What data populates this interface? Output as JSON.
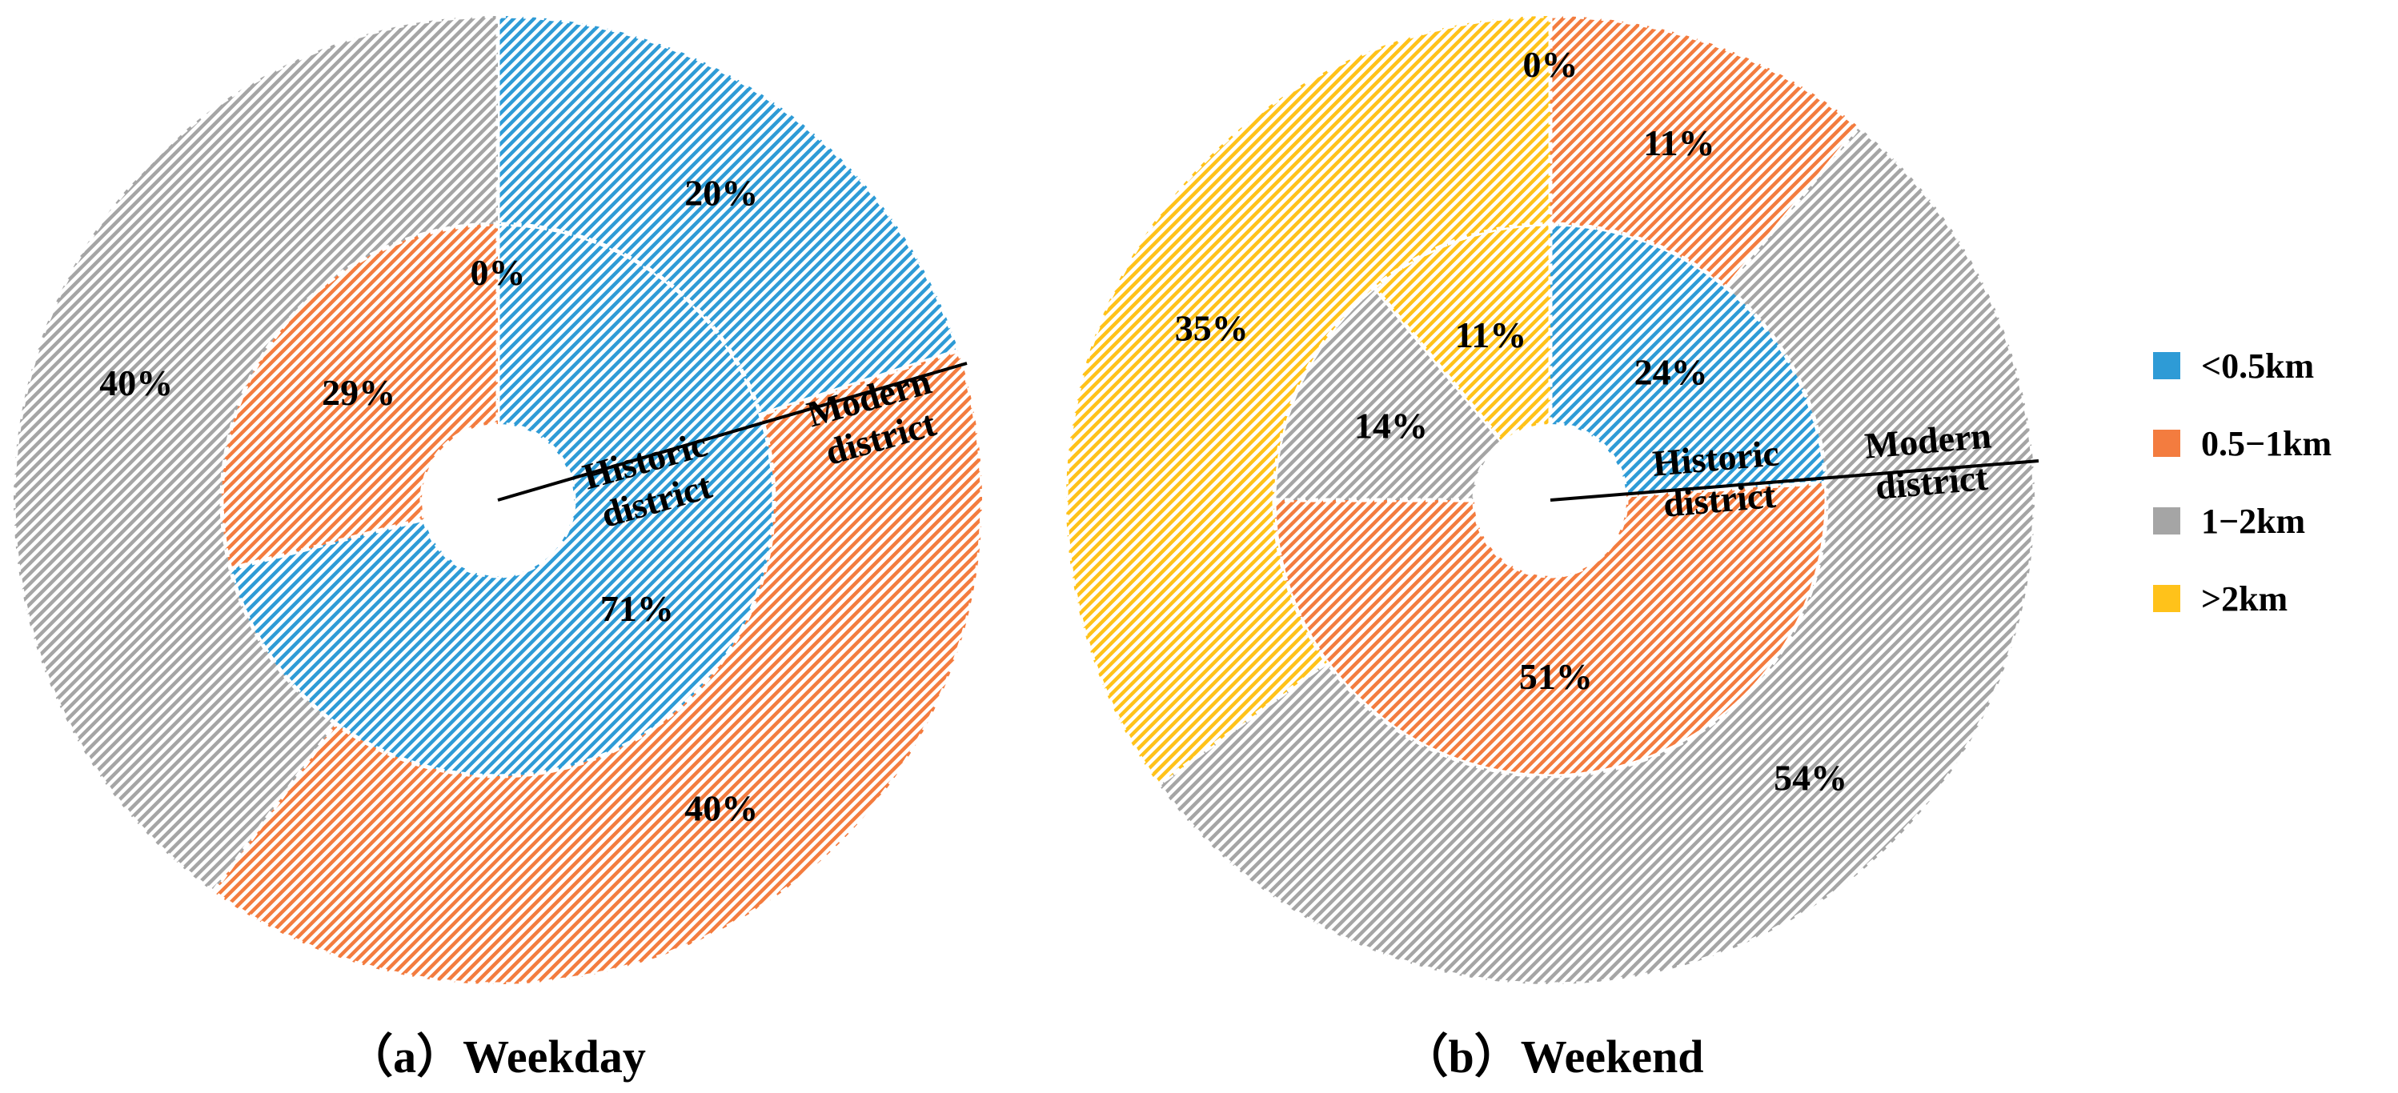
{
  "legend": {
    "items": [
      {
        "label": "<0.5km",
        "color": "#2e9bd6"
      },
      {
        "label": "0.5−1km",
        "color": "#f37c3f"
      },
      {
        "label": "1−2km",
        "color": "#a5a5a5"
      },
      {
        "label": ">2km",
        "color": "#ffc21a"
      }
    ]
  },
  "ring_labels": {
    "inner": "Historic district",
    "outer": "Modern district"
  },
  "chart_data": [
    {
      "type": "pie",
      "subtype": "double-donut",
      "title": "（a）Weekday",
      "categories": [
        "<0.5km",
        "0.5−1km",
        "1−2km",
        ">2km"
      ],
      "series": [
        {
          "name": "Historic district",
          "ring": "inner",
          "values": [
            71,
            29,
            0,
            0
          ],
          "labels": [
            "71%",
            "29%",
            "",
            "0%"
          ]
        },
        {
          "name": "Modern district",
          "ring": "outer",
          "values": [
            20,
            40,
            40,
            0
          ],
          "labels": [
            "20%",
            "40%",
            "40%",
            ""
          ]
        }
      ]
    },
    {
      "type": "pie",
      "subtype": "double-donut",
      "title": "（b）Weekend",
      "categories": [
        "<0.5km",
        "0.5−1km",
        "1−2km",
        ">2km"
      ],
      "series": [
        {
          "name": "Historic district",
          "ring": "inner",
          "values": [
            24,
            51,
            14,
            11
          ],
          "labels": [
            "24%",
            "51%",
            "14%",
            "11%"
          ]
        },
        {
          "name": "Modern district",
          "ring": "outer",
          "values": [
            0,
            11,
            54,
            35
          ],
          "labels": [
            "0%",
            "11%",
            "54%",
            "35%"
          ]
        }
      ]
    }
  ]
}
